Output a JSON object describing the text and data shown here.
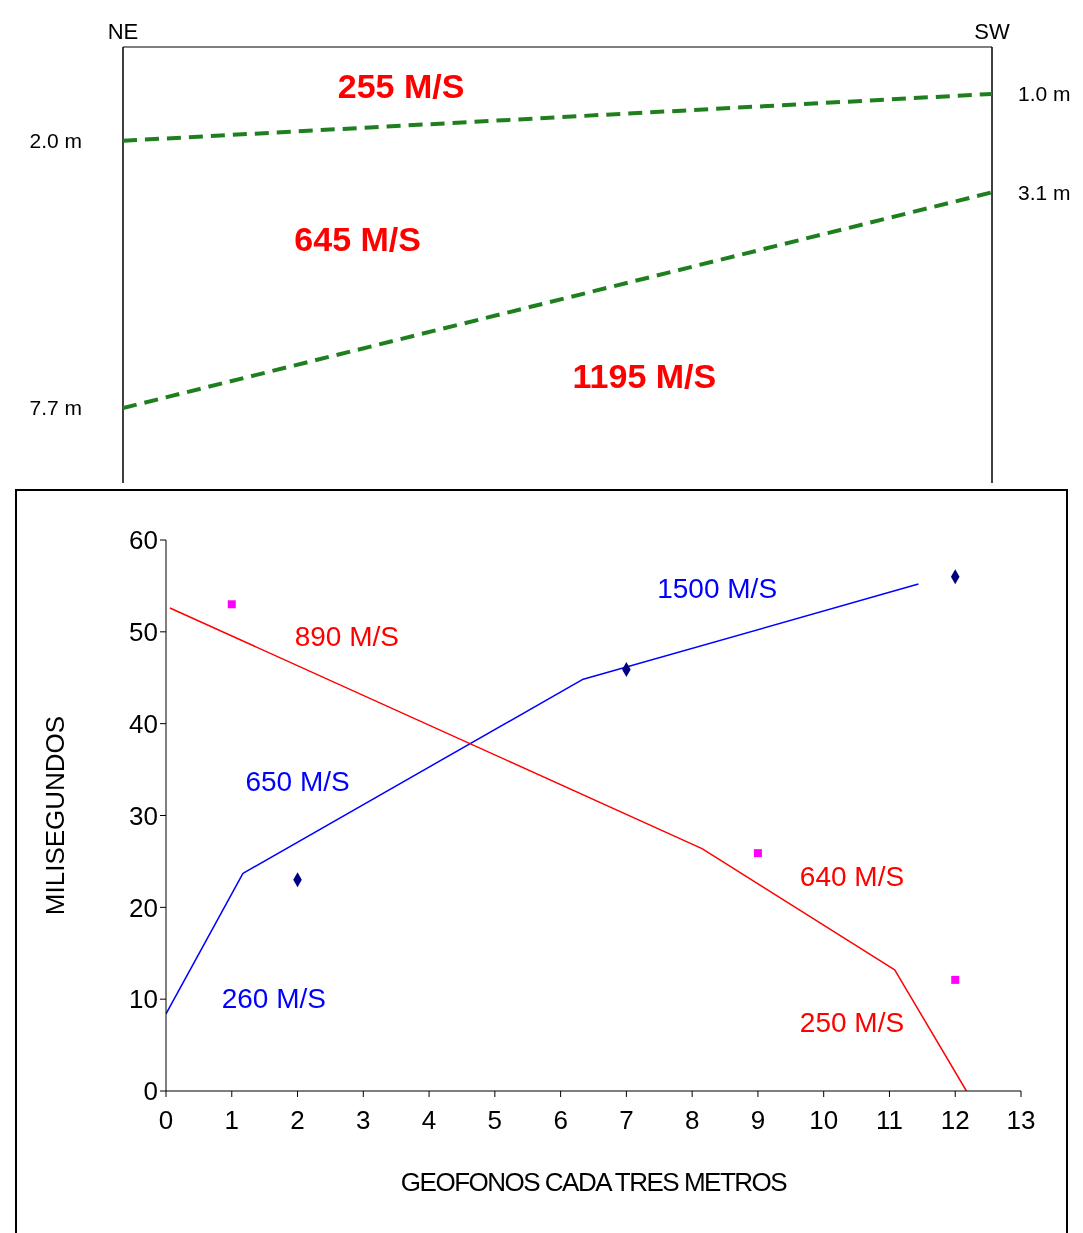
{
  "chart_data": [
    {
      "type": "line",
      "categories": [
        "NE",
        "SW"
      ],
      "line_style": "dashed",
      "marker": "none",
      "grid": "x",
      "legend": false,
      "ylim": [
        9.3,
        0
      ],
      "yticks": [
        {
          "value": 2.0,
          "label": "2.0 m"
        },
        {
          "value": 7.7,
          "label": "7.7 m"
        }
      ],
      "y2lim": [
        9.3,
        0
      ],
      "y2ticks": [
        {
          "value": 1.0,
          "label": "1.0 m"
        },
        {
          "value": 3.1,
          "label": "3.1 m"
        }
      ],
      "series": [
        {
          "color": "#1f7f1f",
          "values": [
            2.0,
            1.0
          ]
        },
        {
          "color": "#1f7f1f",
          "values": [
            7.7,
            3.1
          ]
        }
      ],
      "annotations": [
        "255 M/S",
        "645 M/S",
        "1195 M/S"
      ]
    },
    {
      "type": "line",
      "xlabel": "GEOFONOS CADA TRES METROS",
      "ylabel": "MILISEGUNDOS",
      "xlim": [
        0,
        13
      ],
      "xticks": [
        0,
        1,
        2,
        3,
        4,
        5,
        6,
        7,
        8,
        9,
        10,
        11,
        12,
        13
      ],
      "ylim": [
        0,
        60
      ],
      "yticks": [
        0,
        10,
        20,
        30,
        40,
        50,
        60
      ],
      "grid": false,
      "legend": false,
      "series": [
        {
          "type": "line",
          "color": "#0000ff",
          "marker": "none",
          "x": [
            0,
            1.17,
            6.33,
            11.44
          ],
          "values": [
            8.4,
            23.7,
            44.8,
            55.2
          ]
        },
        {
          "type": "line",
          "color": "#ff0000",
          "marker": "none",
          "x": [
            0.06,
            8.15,
            11.08,
            12.17
          ],
          "values": [
            52.6,
            26.4,
            13.2,
            0
          ]
        },
        {
          "type": "scatter",
          "color": "#000080",
          "marker": "diamond",
          "x": [
            2,
            7,
            12
          ],
          "values": [
            23,
            45.9,
            56
          ]
        },
        {
          "type": "scatter",
          "color": "#ff00ff",
          "marker": "square",
          "x": [
            1,
            9,
            12
          ],
          "values": [
            53,
            25.9,
            12.1
          ]
        }
      ],
      "annotations": [
        "1500 M/S",
        "890 M/S",
        "650 M/S",
        "260 M/S",
        "640 M/S",
        "250 M/S"
      ]
    }
  ]
}
